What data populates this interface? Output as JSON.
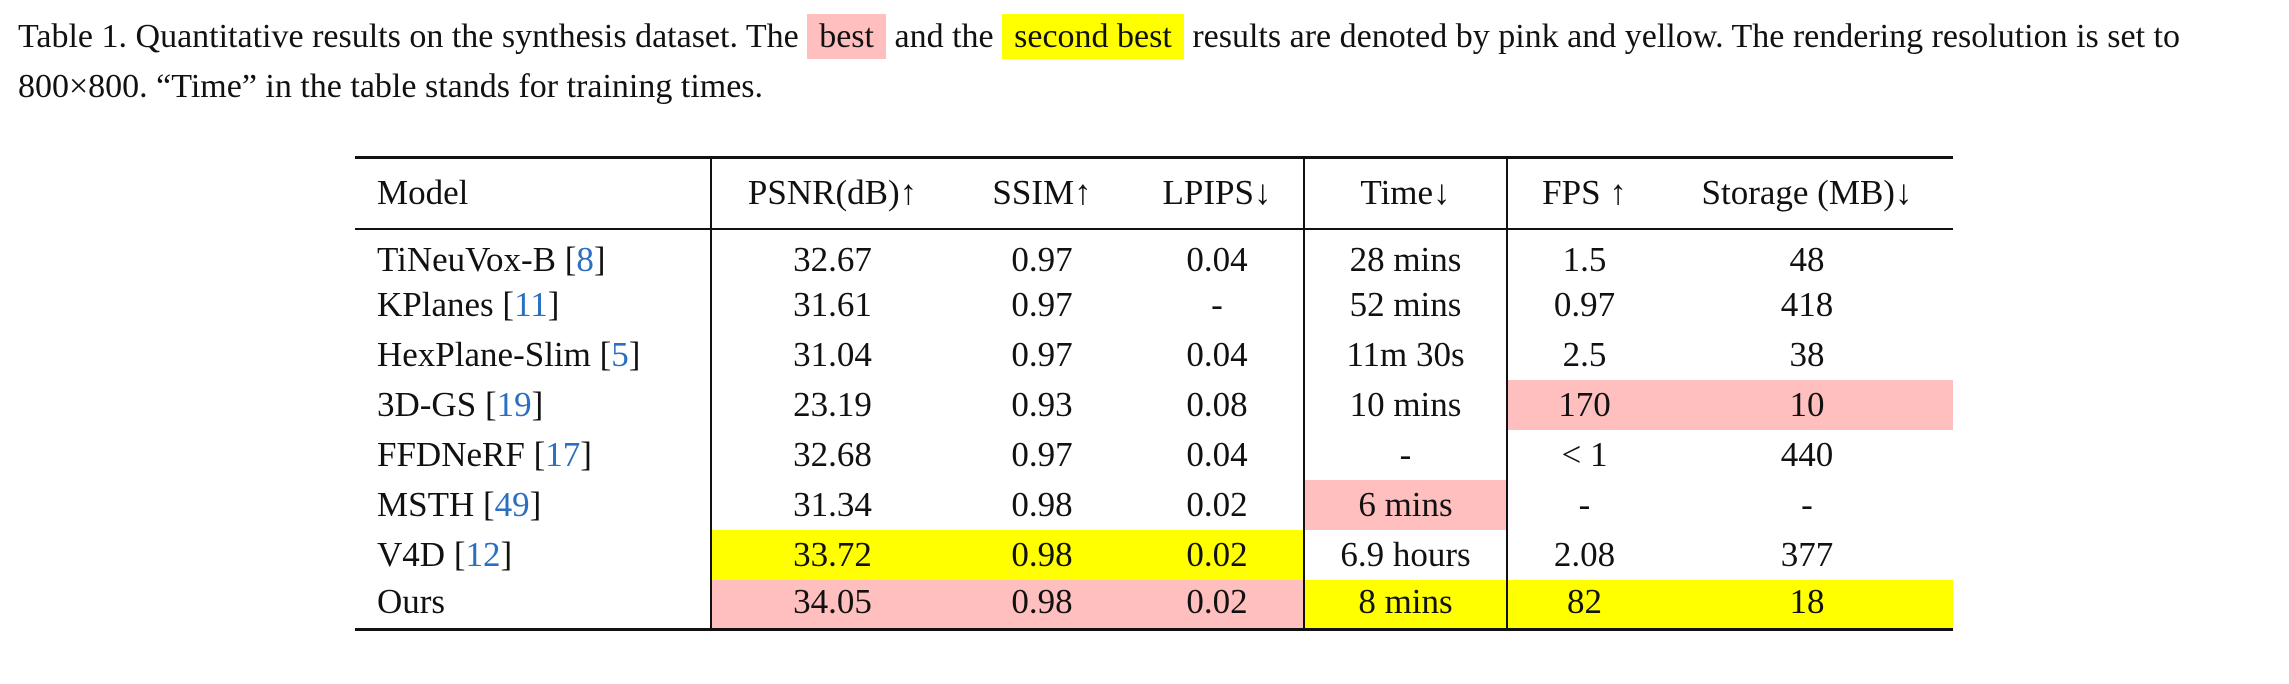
{
  "caption": {
    "parts": [
      "Table 1. Quantitative results on the synthesis dataset. The ",
      "best",
      " and the ",
      "second best",
      " results are denoted by pink and yellow. The rendering resolution is set to 800×800. “Time” in the table stands for training times."
    ]
  },
  "colors": {
    "best": "#ffbfbf",
    "second": "#ffff00"
  },
  "table": {
    "header": [
      "Model",
      "PSNR(dB)↑",
      "SSIM↑",
      "LPIPS↓",
      "Time↓",
      "FPS ↑",
      "Storage (MB)↓"
    ],
    "rows": [
      {
        "model": "TiNeuVox-B",
        "ref": "[8]",
        "cells": [
          "32.67",
          "0.97",
          "0.04",
          "28 mins",
          "1.5",
          "48"
        ],
        "highlight": [
          null,
          null,
          null,
          null,
          null,
          null
        ]
      },
      {
        "model": "KPlanes",
        "ref": "[11]",
        "cells": [
          "31.61",
          "0.97",
          "-",
          "52 mins",
          "0.97",
          "418"
        ],
        "highlight": [
          null,
          null,
          null,
          null,
          null,
          null
        ]
      },
      {
        "model": "HexPlane-Slim",
        "ref": "[5]",
        "cells": [
          "31.04",
          "0.97",
          "0.04",
          "11m 30s",
          "2.5",
          "38"
        ],
        "highlight": [
          null,
          null,
          null,
          null,
          null,
          null
        ]
      },
      {
        "model": "3D-GS",
        "ref": "[19]",
        "cells": [
          "23.19",
          "0.93",
          "0.08",
          "10 mins",
          "170",
          "10"
        ],
        "highlight": [
          null,
          null,
          null,
          null,
          "best",
          "best"
        ]
      },
      {
        "model": "FFDNeRF",
        "ref": "[17]",
        "cells": [
          "32.68",
          "0.97",
          "0.04",
          "-",
          "< 1",
          "440"
        ],
        "highlight": [
          null,
          null,
          null,
          null,
          null,
          null
        ]
      },
      {
        "model": "MSTH",
        "ref": "[49]",
        "cells": [
          "31.34",
          "0.98",
          "0.02",
          "6 mins",
          "-",
          "-"
        ],
        "highlight": [
          null,
          null,
          null,
          "best",
          null,
          null
        ]
      },
      {
        "model": "V4D",
        "ref": "[12]",
        "cells": [
          "33.72",
          "0.98",
          "0.02",
          "6.9 hours",
          "2.08",
          "377"
        ],
        "highlight": [
          "second",
          "second",
          "second",
          null,
          null,
          null
        ]
      },
      {
        "model": "Ours",
        "ref": null,
        "cells": [
          "34.05",
          "0.98",
          "0.02",
          "8 mins",
          "82",
          "18"
        ],
        "highlight": [
          "best",
          "best",
          "best",
          "second",
          "second",
          "second"
        ]
      }
    ]
  }
}
